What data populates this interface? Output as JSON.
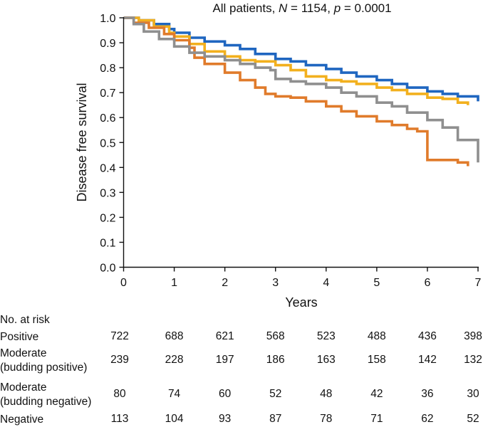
{
  "chart_data": {
    "type": "line",
    "title_prefix": "All patients, ",
    "title_n_var": "N",
    "title_n_value": " = 1154, ",
    "title_p_var": "p",
    "title_p_value": " = 0.0001",
    "xlabel": "Years",
    "ylabel": "Disease free survival",
    "xlim": [
      0,
      7
    ],
    "ylim": [
      0,
      1.0
    ],
    "xticks": [
      0,
      1,
      2,
      3,
      4,
      5,
      6,
      7
    ],
    "yticks": [
      "0.0",
      "0.1",
      "0.2",
      "0.3",
      "0.4",
      "0.5",
      "0.6",
      "0.7",
      "0.8",
      "0.9",
      "1.0"
    ],
    "series": [
      {
        "name": "Positive",
        "color": "#1f66c0",
        "x": [
          0,
          0.3,
          0.6,
          0.9,
          1.0,
          1.3,
          1.6,
          2.0,
          2.3,
          2.6,
          3.0,
          3.3,
          3.6,
          4.0,
          4.3,
          4.6,
          5.0,
          5.3,
          5.6,
          6.0,
          6.3,
          6.6,
          7.0
        ],
        "y": [
          1.0,
          0.99,
          0.975,
          0.955,
          0.94,
          0.92,
          0.905,
          0.89,
          0.875,
          0.855,
          0.835,
          0.825,
          0.81,
          0.795,
          0.78,
          0.765,
          0.75,
          0.735,
          0.72,
          0.705,
          0.695,
          0.685,
          0.665
        ]
      },
      {
        "name": "Moderate (budding positive)",
        "color": "#f2b01e",
        "x": [
          0,
          0.3,
          0.6,
          0.9,
          1.0,
          1.3,
          1.6,
          2.0,
          2.3,
          2.6,
          3.0,
          3.3,
          3.6,
          4.0,
          4.3,
          4.6,
          5.0,
          5.3,
          5.6,
          6.0,
          6.3,
          6.6,
          6.8
        ],
        "y": [
          1.0,
          0.99,
          0.965,
          0.94,
          0.925,
          0.895,
          0.865,
          0.845,
          0.83,
          0.825,
          0.81,
          0.79,
          0.765,
          0.75,
          0.745,
          0.735,
          0.72,
          0.71,
          0.695,
          0.68,
          0.675,
          0.66,
          0.65
        ]
      },
      {
        "name": "Moderate (budding negative)",
        "color": "#e07b2b",
        "x": [
          0,
          0.2,
          0.5,
          0.8,
          1.0,
          1.3,
          1.4,
          1.6,
          2.0,
          2.3,
          2.6,
          2.8,
          3.0,
          3.3,
          3.6,
          4.0,
          4.3,
          4.6,
          5.0,
          5.3,
          5.6,
          5.8,
          6.0,
          6.3,
          6.6,
          6.8
        ],
        "y": [
          1.0,
          0.98,
          0.96,
          0.935,
          0.91,
          0.88,
          0.84,
          0.815,
          0.78,
          0.75,
          0.72,
          0.695,
          0.685,
          0.68,
          0.665,
          0.645,
          0.625,
          0.605,
          0.585,
          0.57,
          0.555,
          0.545,
          0.43,
          0.43,
          0.42,
          0.405
        ]
      },
      {
        "name": "Negative",
        "color": "#8f8f8f",
        "x": [
          0,
          0.2,
          0.4,
          0.7,
          1.0,
          1.3,
          1.6,
          2.0,
          2.3,
          2.6,
          2.9,
          3.0,
          3.3,
          3.6,
          4.0,
          4.3,
          4.6,
          5.0,
          5.3,
          5.6,
          6.0,
          6.3,
          6.6,
          7.0
        ],
        "y": [
          1.0,
          0.975,
          0.945,
          0.915,
          0.885,
          0.86,
          0.845,
          0.83,
          0.815,
          0.8,
          0.79,
          0.755,
          0.745,
          0.735,
          0.72,
          0.7,
          0.685,
          0.66,
          0.645,
          0.62,
          0.59,
          0.56,
          0.51,
          0.42
        ]
      }
    ],
    "risk_table": {
      "header": "No. at risk",
      "rows": [
        {
          "label_lines": [
            "Positive"
          ],
          "values": [
            "722",
            "688",
            "621",
            "568",
            "523",
            "488",
            "436",
            "398"
          ]
        },
        {
          "label_lines": [
            "Moderate",
            "(budding positive)"
          ],
          "values": [
            "239",
            "228",
            "197",
            "186",
            "163",
            "158",
            "142",
            "132"
          ]
        },
        {
          "label_lines": [
            "Moderate",
            "(budding negative)"
          ],
          "values": [
            "80",
            "74",
            "60",
            "52",
            "48",
            "42",
            "36",
            "30"
          ]
        },
        {
          "label_lines": [
            "Negative"
          ],
          "values": [
            "113",
            "104",
            "93",
            "87",
            "78",
            "71",
            "62",
            "52"
          ]
        }
      ]
    }
  }
}
